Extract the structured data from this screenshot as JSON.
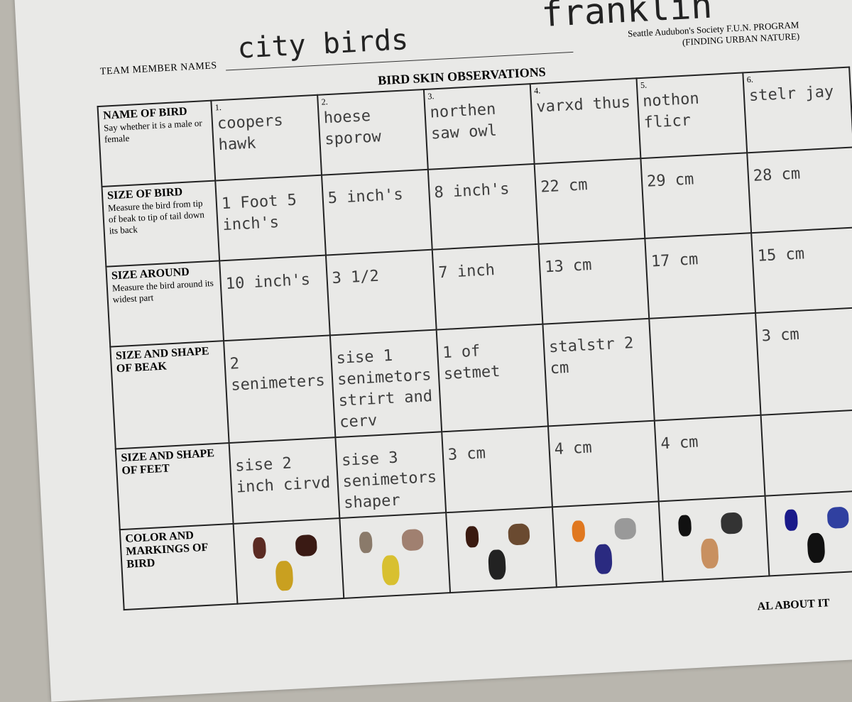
{
  "header": {
    "team_label": "TEAM MEMBER NAMES",
    "team_names": "city birds",
    "student": "franklin",
    "org": "Seattle Audubon's Society F.U.N. PROGRAM",
    "org_sub": "(FINDING URBAN NATURE)"
  },
  "title": "BIRD SKIN OBSERVATIONS",
  "table": {
    "columns": [
      "1.",
      "2.",
      "3.",
      "4.",
      "5.",
      "6."
    ],
    "rows": [
      {
        "label": "NAME OF BIRD",
        "note": "Say whether it is a male or female",
        "cells": [
          "coopers hawk",
          "hoese sporow",
          "northen saw owl",
          "varxd thus",
          "nothon flicr",
          "stelr jay"
        ]
      },
      {
        "label": "SIZE OF BIRD",
        "note": "Measure the bird from tip of beak to tip of tail down its back",
        "cells": [
          "1 Foot 5 inch's",
          "5 inch's",
          "8 inch's",
          "22 cm",
          "29 cm",
          "28 cm"
        ]
      },
      {
        "label": "SIZE AROUND",
        "note": "Measure the bird around its widest part",
        "cells": [
          "10 inch's",
          "3 1/2",
          "7 inch",
          "13 cm",
          "17 cm",
          "15 cm"
        ]
      },
      {
        "label": "SIZE AND SHAPE OF BEAK",
        "cells": [
          "2 senimeters",
          "sise 1 senimetors strirt and cerv",
          "1 of setmet",
          "stalstr 2 cm",
          null,
          "3 cm"
        ]
      },
      {
        "label": "SIZE AND SHAPE OF FEET",
        "cells": [
          "sise 2 inch cirvd",
          "sise 3 senimetors shaper",
          "3 cm",
          "4 cm",
          "4 cm",
          null
        ]
      },
      {
        "label": "COLOR AND MARKINGS OF BIRD"
      }
    ]
  },
  "footer_fragment": "AL ABOUT IT"
}
